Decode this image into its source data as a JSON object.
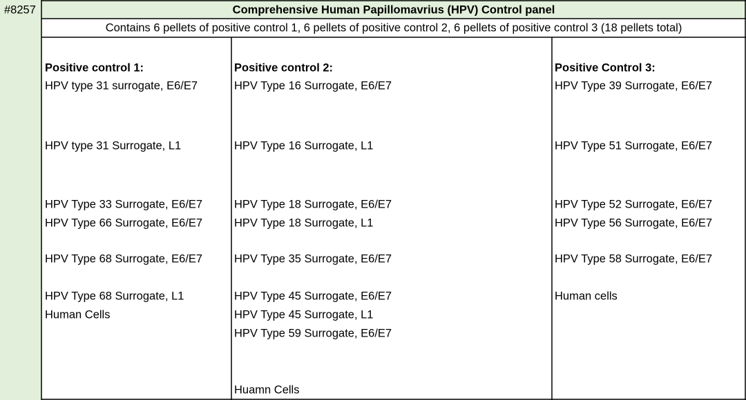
{
  "panel": {
    "id": "#8257",
    "title": "Comprehensive Human Papillomavrius (HPV) Control panel",
    "description": "Contains 6 pellets of positive control 1, 6 pellets of positive control 2, 6 pellets of positive control 3 (18 pellets total)",
    "columns": [
      {
        "header": "Positive control 1:",
        "items": [
          "HPV type 31 surrogate, E6/E7",
          "HPV type 31 Surrogate, L1",
          "HPV Type 33 Surrogate, E6/E7",
          "HPV Type 66 Surrogate, E6/E7",
          "HPV Type 68 Surrogate, E6/E7",
          "HPV Type 68 Surrogate, L1",
          "Human Cells"
        ]
      },
      {
        "header": "Positive control 2:",
        "items": [
          "HPV Type 16 Surrogate, E6/E7",
          "HPV Type 16 Surrogate, L1",
          "HPV Type 18 Surrogate, E6/E7",
          "HPV Type 18 Surrogate, L1",
          "HPV Type 35 Surrogate, E6/E7",
          "HPV Type 45 Surrogate, E6/E7",
          "HPV Type 45 Surrogate, L1",
          "HPV Type 59 Surrogate, E6/E7",
          "Huamn Cells"
        ]
      },
      {
        "header": "Positive Control 3:",
        "items": [
          "HPV Type 39 Surrogate, E6/E7",
          "HPV Type 51 Surrogate, E6/E7",
          "HPV Type 52 Surrogate, E6/E7",
          "HPV Type 56 Surrogate, E6/E7",
          "HPV Type 58 Surrogate, E6/E7",
          "Human cells"
        ]
      }
    ]
  }
}
